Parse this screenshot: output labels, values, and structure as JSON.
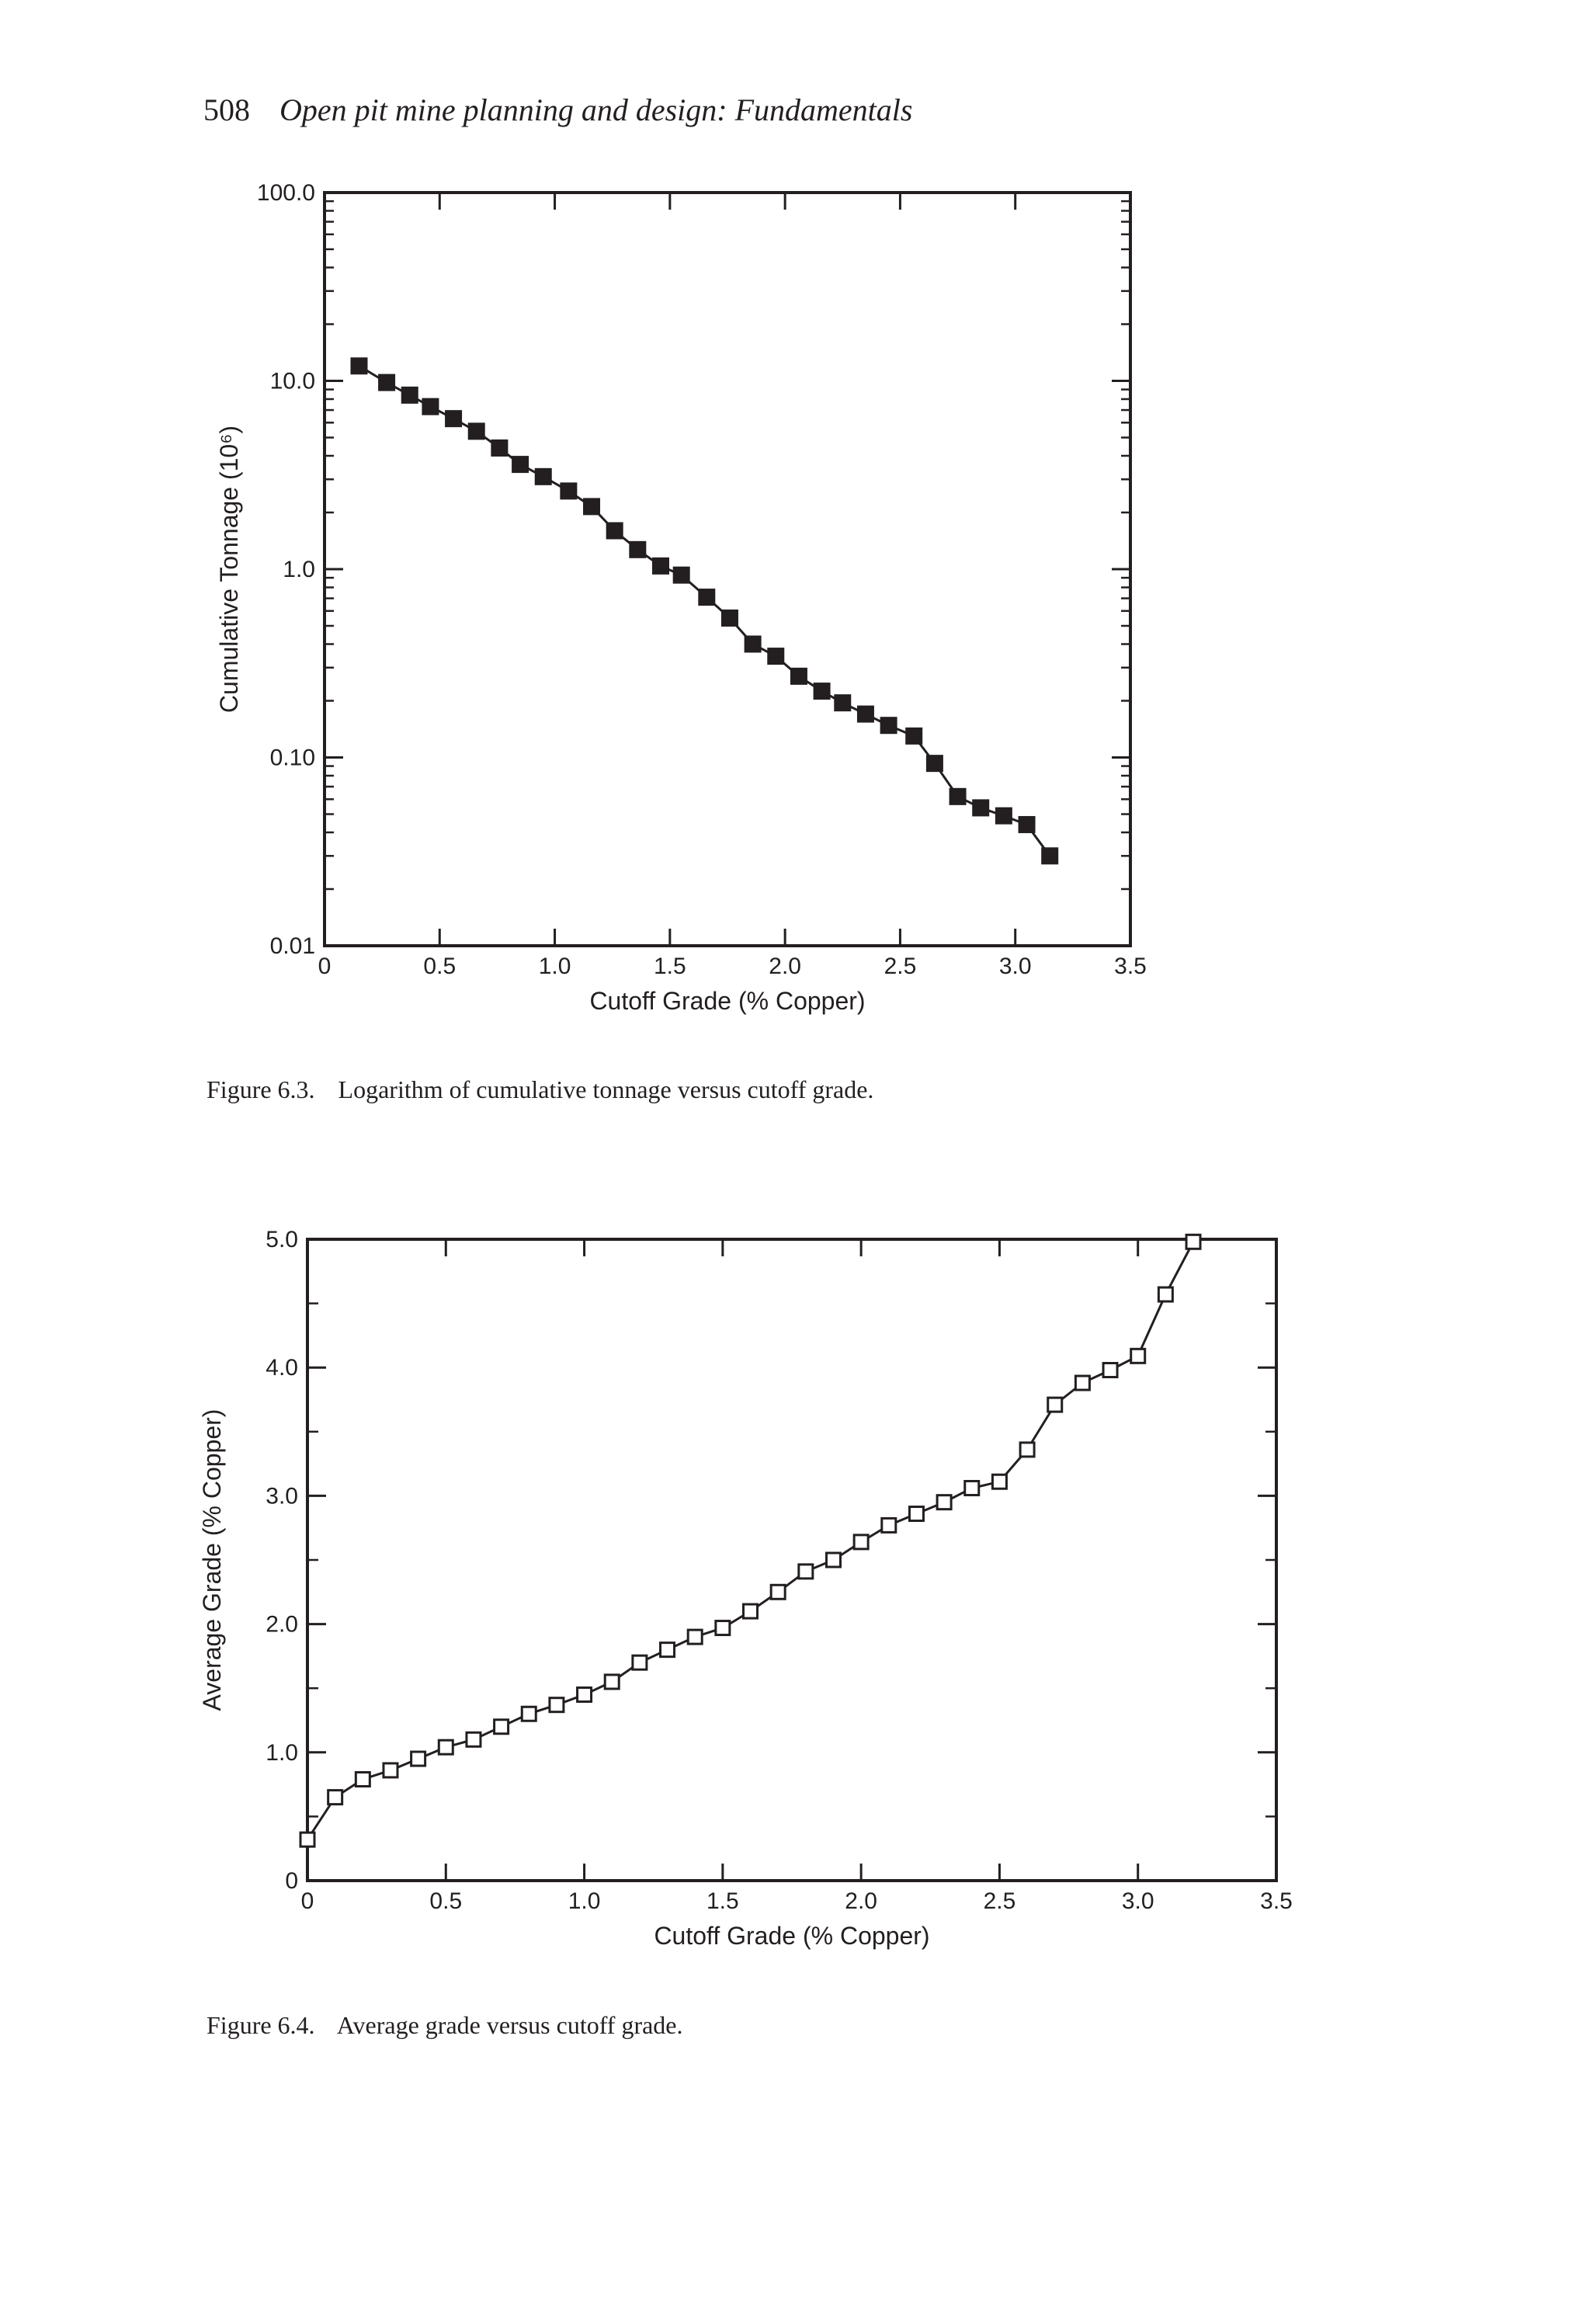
{
  "header": {
    "page_number": "508",
    "running_title": "Open pit mine planning and design: Fundamentals"
  },
  "figures": [
    {
      "label": "Figure 6.3.",
      "caption": "Logarithm of cumulative tonnage versus cutoff grade."
    },
    {
      "label": "Figure 6.4.",
      "caption": "Average grade versus cutoff grade."
    }
  ],
  "chart_data": [
    {
      "type": "scatter",
      "line": true,
      "marker": "filled-square",
      "xlabel": "Cutoff Grade (% Copper)",
      "ylabel": "Cumulative Tonnage (10⁶)",
      "xlim": [
        0,
        3.5
      ],
      "ylim": [
        0.01,
        100.0
      ],
      "yscale": "log",
      "grid": false,
      "xticks": [
        "0",
        "0.5",
        "1.0",
        "1.5",
        "2.0",
        "2.5",
        "3.0",
        "3.5"
      ],
      "yticks": [
        "0.01",
        "0.10",
        "1.0",
        "10.0",
        "100.0"
      ],
      "series": [
        {
          "x": [
            0.15,
            0.27,
            0.37,
            0.46,
            0.56,
            0.66,
            0.76,
            0.85,
            0.95,
            1.06,
            1.16,
            1.26,
            1.36,
            1.46,
            1.55,
            1.66,
            1.76,
            1.86,
            1.96,
            2.06,
            2.16,
            2.25,
            2.35,
            2.45,
            2.56,
            2.65,
            2.75,
            2.85,
            2.95,
            3.05,
            3.15
          ],
          "y": [
            12.0,
            9.8,
            8.4,
            7.3,
            6.3,
            5.4,
            4.4,
            3.6,
            3.1,
            2.6,
            2.15,
            1.6,
            1.27,
            1.04,
            0.93,
            0.71,
            0.55,
            0.4,
            0.345,
            0.27,
            0.225,
            0.195,
            0.17,
            0.148,
            0.13,
            0.093,
            0.062,
            0.054,
            0.049,
            0.044,
            0.03
          ]
        }
      ]
    },
    {
      "type": "scatter",
      "line": true,
      "marker": "open-square",
      "xlabel": "Cutoff Grade (% Copper)",
      "ylabel": "Average Grade (% Copper)",
      "xlim": [
        0,
        3.5
      ],
      "ylim": [
        0,
        5.0
      ],
      "grid": false,
      "xticks": [
        "0",
        "0.5",
        "1.0",
        "1.5",
        "2.0",
        "2.5",
        "3.0",
        "3.5"
      ],
      "yticks": [
        "0",
        "1.0",
        "2.0",
        "3.0",
        "4.0",
        "5.0"
      ],
      "series": [
        {
          "x": [
            0.0,
            0.1,
            0.2,
            0.3,
            0.4,
            0.5,
            0.6,
            0.7,
            0.8,
            0.9,
            1.0,
            1.1,
            1.2,
            1.3,
            1.4,
            1.5,
            1.6,
            1.7,
            1.8,
            1.9,
            2.0,
            2.1,
            2.2,
            2.3,
            2.4,
            2.5,
            2.6,
            2.7,
            2.8,
            2.9,
            3.0,
            3.1,
            3.2
          ],
          "y": [
            0.32,
            0.65,
            0.79,
            0.86,
            0.95,
            1.04,
            1.1,
            1.2,
            1.3,
            1.37,
            1.45,
            1.55,
            1.7,
            1.8,
            1.9,
            1.97,
            2.1,
            2.25,
            2.41,
            2.5,
            2.64,
            2.77,
            2.86,
            2.95,
            3.06,
            3.11,
            3.36,
            3.71,
            3.88,
            3.98,
            4.09,
            4.57,
            4.98
          ]
        }
      ]
    }
  ]
}
